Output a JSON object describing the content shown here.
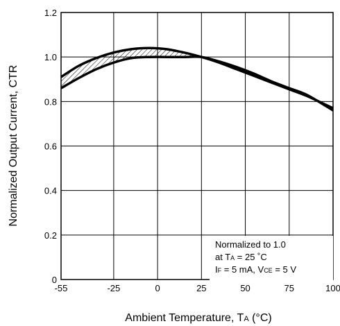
{
  "chart_data": {
    "type": "area",
    "title": "",
    "xlabel": "Ambient Temperature, T",
    "xlabel_sub": "A",
    "xlabel_unit": " (°C)",
    "ylabel": "Normalized Output Current, CTR",
    "xlim": [
      -55,
      100
    ],
    "ylim": [
      0,
      1.2
    ],
    "x_ticks": [
      "-55",
      "-25",
      "0",
      "25",
      "50",
      "75",
      "100"
    ],
    "y_ticks": [
      "0",
      "0.2",
      "0.4",
      "0.6",
      "0.8",
      "1.0",
      "1.2"
    ],
    "grid": true,
    "series": [
      {
        "x": [
          -55,
          -45,
          -35,
          -25,
          -15,
          -5,
          5,
          15,
          25,
          35,
          45,
          55,
          65,
          75,
          85,
          100
        ],
        "y": [
          0.91,
          0.96,
          0.995,
          1.02,
          1.035,
          1.04,
          1.035,
          1.02,
          1.0,
          0.975,
          0.945,
          0.915,
          0.885,
          0.855,
          0.825,
          0.77
        ]
      },
      {
        "x": [
          -55,
          -45,
          -35,
          -25,
          -15,
          -5,
          5,
          15,
          25,
          35,
          45,
          55,
          65,
          75,
          85,
          100
        ],
        "y": [
          0.86,
          0.905,
          0.945,
          0.975,
          0.995,
          1.0,
          1.0,
          1.0,
          1.0,
          0.98,
          0.955,
          0.925,
          0.89,
          0.86,
          0.83,
          0.76
        ]
      }
    ],
    "annotation": {
      "line1": "Normalized to 1.0",
      "line2_pre": "at T",
      "line2_sub": "A",
      "line2_post": " = 25 ˚C",
      "line3_a": "I",
      "line3_a_sub": "F",
      "line3_b": " = 5 mA, V",
      "line3_b_sub": "CE",
      "line3_c": " = 5 V"
    }
  }
}
